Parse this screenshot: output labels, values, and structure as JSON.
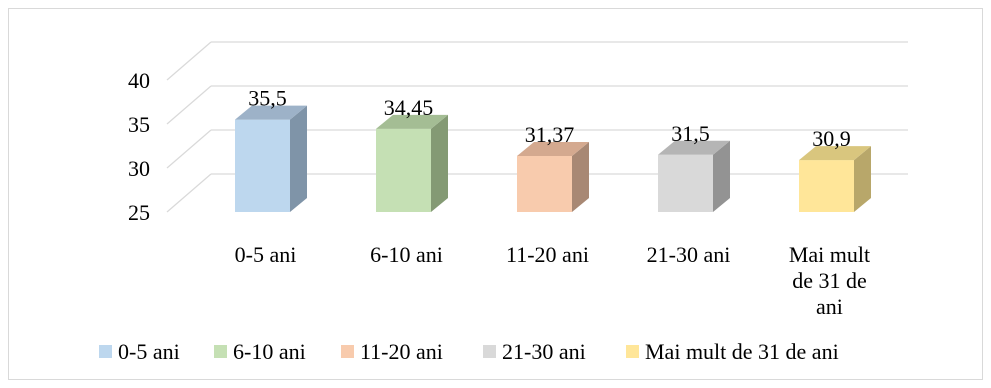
{
  "chart_data": {
    "type": "bar",
    "style": "3d-column",
    "categories": [
      "0-5 ani",
      "6-10 ani",
      "11-20 ani",
      "21-30 ani",
      "Mai mult de 31 de ani"
    ],
    "category_axis_lines": [
      [
        "0-5 ani"
      ],
      [
        "6-10 ani"
      ],
      [
        "11-20 ani"
      ],
      [
        "21-30 ani"
      ],
      [
        "Mai mult",
        "de 31 de",
        "ani"
      ]
    ],
    "values": [
      35.5,
      34.45,
      31.37,
      31.5,
      30.9
    ],
    "data_labels": [
      "35,5",
      "34,45",
      "31,37",
      "31,5",
      "30,9"
    ],
    "ylim": [
      25,
      40
    ],
    "yticks": [
      25,
      30,
      35,
      40
    ],
    "ytick_labels": [
      "25",
      "30",
      "35",
      "40"
    ],
    "gridlines": true,
    "legend": {
      "position": "bottom",
      "entries": [
        "0-5 ani",
        "6-10 ani",
        "11-20 ani",
        "21-30 ani",
        "Mai mult de 31 de ani"
      ]
    },
    "colors": {
      "front": [
        "#bdd7ee",
        "#c5e0b4",
        "#f8cbad",
        "#d9d9d9",
        "#ffe699"
      ],
      "side": [
        "#7f94a8",
        "#849a74",
        "#a88874",
        "#939393",
        "#b8a76a"
      ],
      "top": [
        "#9db2c8",
        "#a4bd94",
        "#d4a98f",
        "#b5b5b5",
        "#d9c67e"
      ],
      "grid": "#d9d9d9"
    }
  }
}
